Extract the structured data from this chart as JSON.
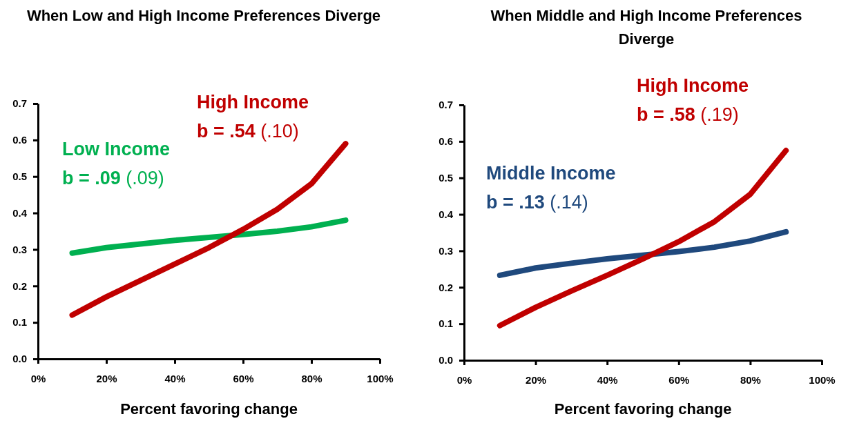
{
  "chart_data": [
    {
      "type": "line",
      "title": "When Low and High Income Preferences Diverge",
      "xlabel": "Percent favoring change",
      "x": [
        10,
        20,
        30,
        40,
        50,
        60,
        70,
        80,
        90
      ],
      "series": [
        {
          "name": "Low Income",
          "color": "#00b050",
          "values": [
            0.29,
            0.305,
            0.315,
            0.325,
            0.333,
            0.341,
            0.35,
            0.362,
            0.38
          ]
        },
        {
          "name": "High Income",
          "color": "#c00000",
          "values": [
            0.12,
            0.17,
            0.215,
            0.26,
            0.305,
            0.355,
            0.41,
            0.48,
            0.59
          ]
        }
      ],
      "annotations": [
        "b = .09 (.09)",
        "b = .54 (.10)"
      ],
      "xlim": [
        0,
        100
      ],
      "ylim": [
        0,
        0.7
      ],
      "xticks": [
        {
          "value": 0,
          "label": "0%"
        },
        {
          "value": 20,
          "label": "20%"
        },
        {
          "value": 40,
          "label": "40%"
        },
        {
          "value": 60,
          "label": "60%"
        },
        {
          "value": 80,
          "label": "80%"
        },
        {
          "value": 100,
          "label": "100%"
        }
      ],
      "yticks": [
        {
          "value": 0,
          "label": "0.0"
        },
        0.1,
        0.2,
        0.3,
        0.4,
        0.5,
        0.6,
        0.7
      ],
      "marker": "none",
      "line_style": "solid"
    },
    {
      "type": "line",
      "title": "When Middle and High Income Preferences Diverge",
      "xlabel": "Percent favoring change",
      "x": [
        10,
        20,
        30,
        40,
        50,
        60,
        70,
        80,
        90
      ],
      "series": [
        {
          "name": "Middle Income",
          "color": "#1f497d",
          "values": [
            0.233,
            0.253,
            0.266,
            0.278,
            0.288,
            0.298,
            0.31,
            0.327,
            0.352
          ]
        },
        {
          "name": "High Income",
          "color": "#c00000",
          "values": [
            0.095,
            0.145,
            0.19,
            0.233,
            0.278,
            0.325,
            0.38,
            0.455,
            0.575
          ]
        }
      ],
      "annotations": [
        "b = .13 (.14)",
        "b = .58 (.19)"
      ],
      "xlim": [
        0,
        100
      ],
      "ylim": [
        0,
        0.7
      ],
      "xticks": [
        {
          "value": 0,
          "label": "0%"
        },
        {
          "value": 20,
          "label": "20%"
        },
        {
          "value": 40,
          "label": "40%"
        },
        {
          "value": 60,
          "label": "60%"
        },
        {
          "value": 80,
          "label": "80%"
        },
        {
          "value": 100,
          "label": "100%"
        }
      ],
      "yticks": [
        {
          "value": 0,
          "label": "0.0"
        },
        0.1,
        0.2,
        0.3,
        0.4,
        0.5,
        0.6,
        0.7
      ],
      "marker": "none",
      "line_style": "solid"
    }
  ]
}
